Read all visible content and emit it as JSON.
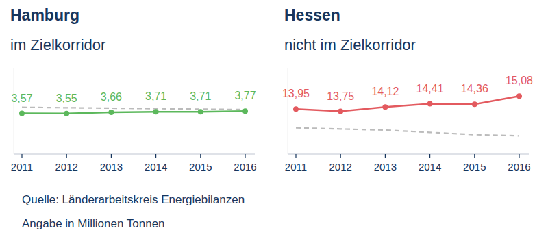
{
  "chart_data": [
    {
      "type": "line",
      "title": "Hamburg",
      "subtitle": "im Zielkorridor",
      "categories": [
        "2011",
        "2012",
        "2013",
        "2014",
        "2015",
        "2016"
      ],
      "ylim": [
        0,
        7.5
      ],
      "tick_labels": "x",
      "grid": false,
      "series": [
        {
          "color": "#5cb85c",
          "marker": "circle",
          "line_style": "solid",
          "data_labels": true,
          "values": [
            3.57,
            3.55,
            3.66,
            3.71,
            3.71,
            3.77
          ],
          "value_labels": [
            "3,57",
            "3,55",
            "3,66",
            "3,71",
            "3,71",
            "3,77"
          ]
        },
        {
          "color": "#bbbbbb",
          "marker": "none",
          "line_style": "dashed",
          "data_labels": false,
          "values": [
            4.1,
            4.06,
            4.02,
            3.98,
            3.94,
            3.9
          ]
        }
      ]
    },
    {
      "type": "line",
      "title": "Hessen",
      "subtitle": "nicht im Zielkorridor",
      "categories": [
        "2011",
        "2012",
        "2013",
        "2014",
        "2015",
        "2016"
      ],
      "ylim": [
        10,
        17.5
      ],
      "tick_labels": "x",
      "grid": false,
      "series": [
        {
          "color": "#e35a5f",
          "marker": "circle",
          "line_style": "solid",
          "data_labels": true,
          "values": [
            13.95,
            13.75,
            14.12,
            14.41,
            14.36,
            15.08
          ],
          "value_labels": [
            "13,95",
            "13,75",
            "14,12",
            "14,41",
            "14,36",
            "15,08"
          ]
        },
        {
          "color": "#bbbbbb",
          "marker": "none",
          "line_style": "dashed",
          "data_labels": false,
          "values": [
            12.3,
            12.2,
            12.1,
            11.9,
            11.7,
            11.6
          ]
        }
      ]
    }
  ],
  "footer": [
    "Quelle: Länderarbeitskreis Energiebilanzen",
    "Angabe in Millionen Tonnen"
  ]
}
